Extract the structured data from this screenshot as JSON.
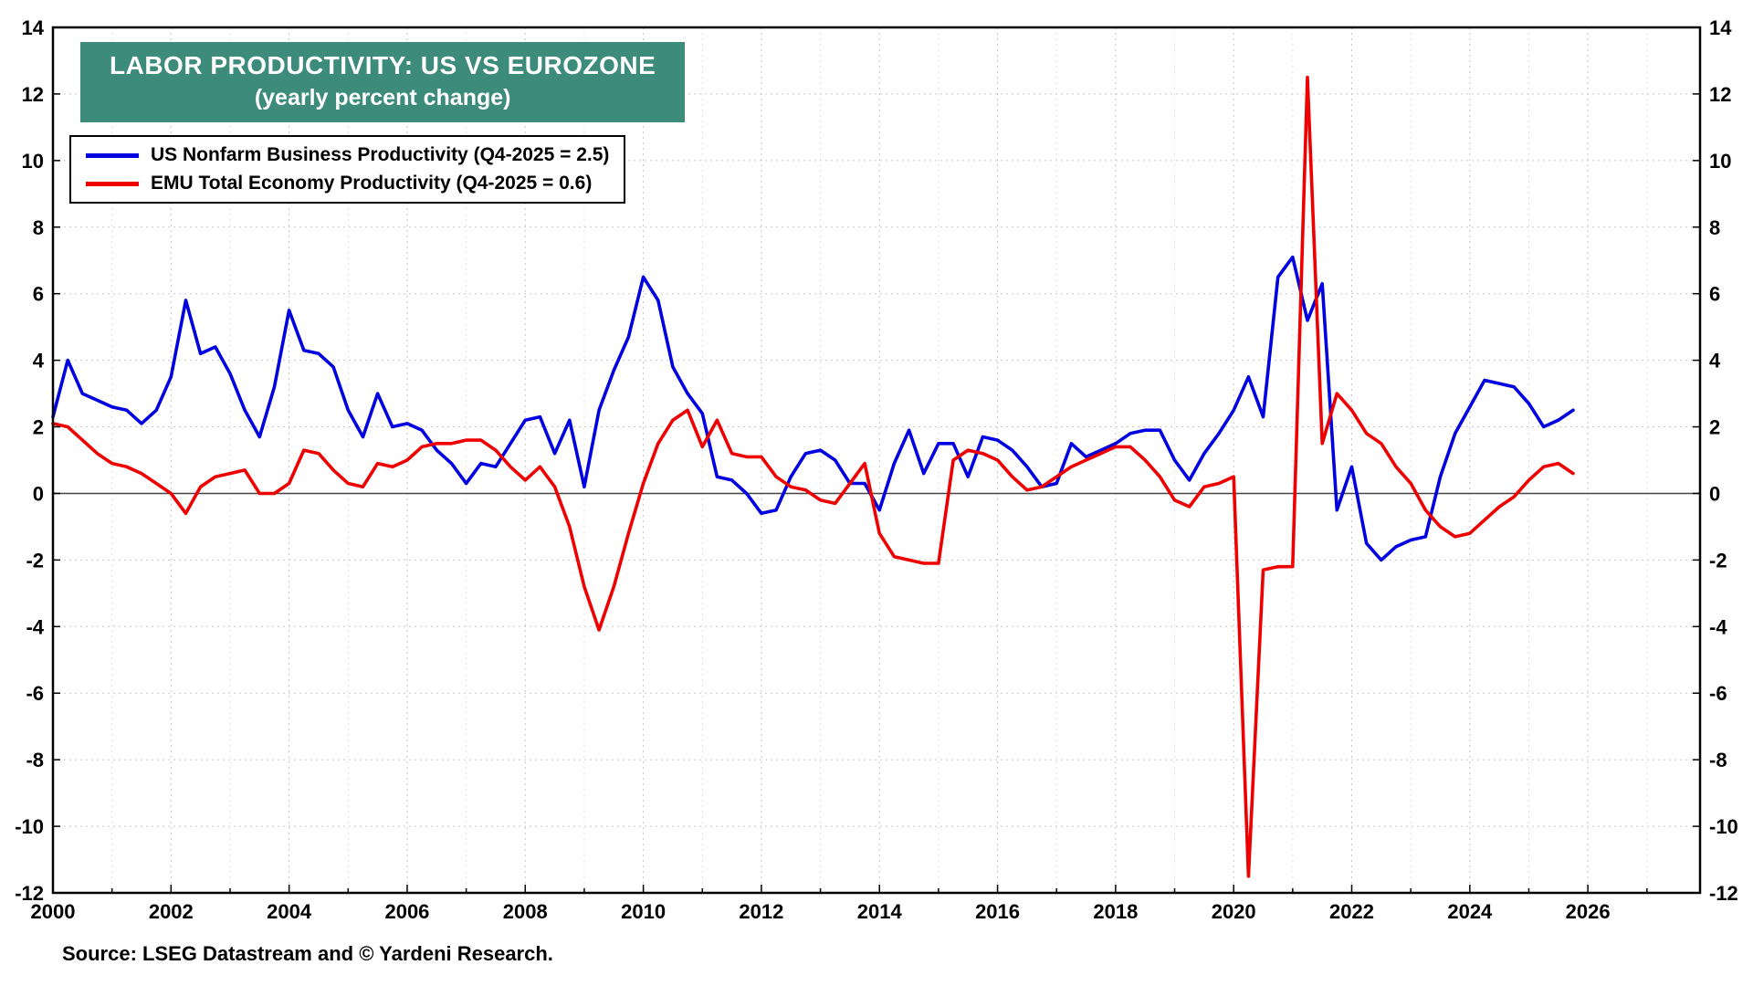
{
  "chart_data": {
    "type": "line",
    "title": "LABOR PRODUCTIVITY: US VS EUROZONE",
    "subtitle": "(yearly percent change)",
    "source": "Source: LSEG Datastream and © Yardeni Research.",
    "title_bg_color": "#3c8b7b",
    "x_start": 2000,
    "x_step": 0.25,
    "xlim": [
      2000,
      2027.9
    ],
    "ylim": [
      -12,
      14
    ],
    "x_ticks": [
      2000,
      2002,
      2004,
      2006,
      2008,
      2010,
      2012,
      2014,
      2016,
      2018,
      2020,
      2022,
      2024,
      2026
    ],
    "y_ticks": [
      14,
      12,
      10,
      8,
      6,
      4,
      2,
      0,
      -2,
      -4,
      -6,
      -8,
      -10,
      -12
    ],
    "grid": true,
    "legend_position": "top-left",
    "series": [
      {
        "name": "US Nonfarm Business Productivity (Q4-2025 = 2.5)",
        "color": "#0000e0",
        "values": [
          2.3,
          4.0,
          3.0,
          2.8,
          2.6,
          2.5,
          2.1,
          2.5,
          3.5,
          5.8,
          4.2,
          4.4,
          3.6,
          2.5,
          1.7,
          3.2,
          5.5,
          4.3,
          4.2,
          3.8,
          2.5,
          1.7,
          3.0,
          2.0,
          2.1,
          1.9,
          1.3,
          0.9,
          0.3,
          0.9,
          0.8,
          1.5,
          2.2,
          2.3,
          1.2,
          2.2,
          0.2,
          2.5,
          3.7,
          4.7,
          6.5,
          5.8,
          3.8,
          3.0,
          2.4,
          0.5,
          0.4,
          0.0,
          -0.6,
          -0.5,
          0.5,
          1.2,
          1.3,
          1.0,
          0.3,
          0.3,
          -0.5,
          0.9,
          1.9,
          0.6,
          1.5,
          1.5,
          0.5,
          1.7,
          1.6,
          1.3,
          0.8,
          0.2,
          0.3,
          1.5,
          1.1,
          1.3,
          1.5,
          1.8,
          1.9,
          1.9,
          1.0,
          0.4,
          1.2,
          1.8,
          2.5,
          3.5,
          2.3,
          6.5,
          7.1,
          5.2,
          6.3,
          -0.5,
          0.8,
          -1.5,
          -2.0,
          -1.6,
          -1.4,
          -1.3,
          0.5,
          1.8,
          2.6,
          3.4,
          3.3,
          3.2,
          2.7,
          2.0,
          2.2,
          2.5
        ]
      },
      {
        "name": "EMU Total Economy Productivity (Q4-2025 = 0.6)",
        "color": "#ee0000",
        "values": [
          2.1,
          2.0,
          1.6,
          1.2,
          0.9,
          0.8,
          0.6,
          0.3,
          0.0,
          -0.6,
          0.2,
          0.5,
          0.6,
          0.7,
          0.0,
          0.0,
          0.3,
          1.3,
          1.2,
          0.7,
          0.3,
          0.2,
          0.9,
          0.8,
          1.0,
          1.4,
          1.5,
          1.5,
          1.6,
          1.6,
          1.3,
          0.8,
          0.4,
          0.8,
          0.2,
          -1.0,
          -2.8,
          -4.1,
          -2.8,
          -1.2,
          0.3,
          1.5,
          2.2,
          2.5,
          1.4,
          2.2,
          1.2,
          1.1,
          1.1,
          0.5,
          0.2,
          0.1,
          -0.2,
          -0.3,
          0.3,
          0.9,
          -1.2,
          -1.9,
          -2.0,
          -2.1,
          -2.1,
          1.0,
          1.3,
          1.2,
          1.0,
          0.5,
          0.1,
          0.2,
          0.5,
          0.8,
          1.0,
          1.2,
          1.4,
          1.4,
          1.0,
          0.5,
          -0.2,
          -0.4,
          0.2,
          0.3,
          0.5,
          -11.5,
          -2.3,
          -2.2,
          -2.2,
          12.5,
          1.5,
          3.0,
          2.5,
          1.8,
          1.5,
          0.8,
          0.3,
          -0.5,
          -1.0,
          -1.3,
          -1.2,
          -0.8,
          -0.4,
          -0.1,
          0.4,
          0.8,
          0.9,
          0.6
        ]
      }
    ]
  }
}
